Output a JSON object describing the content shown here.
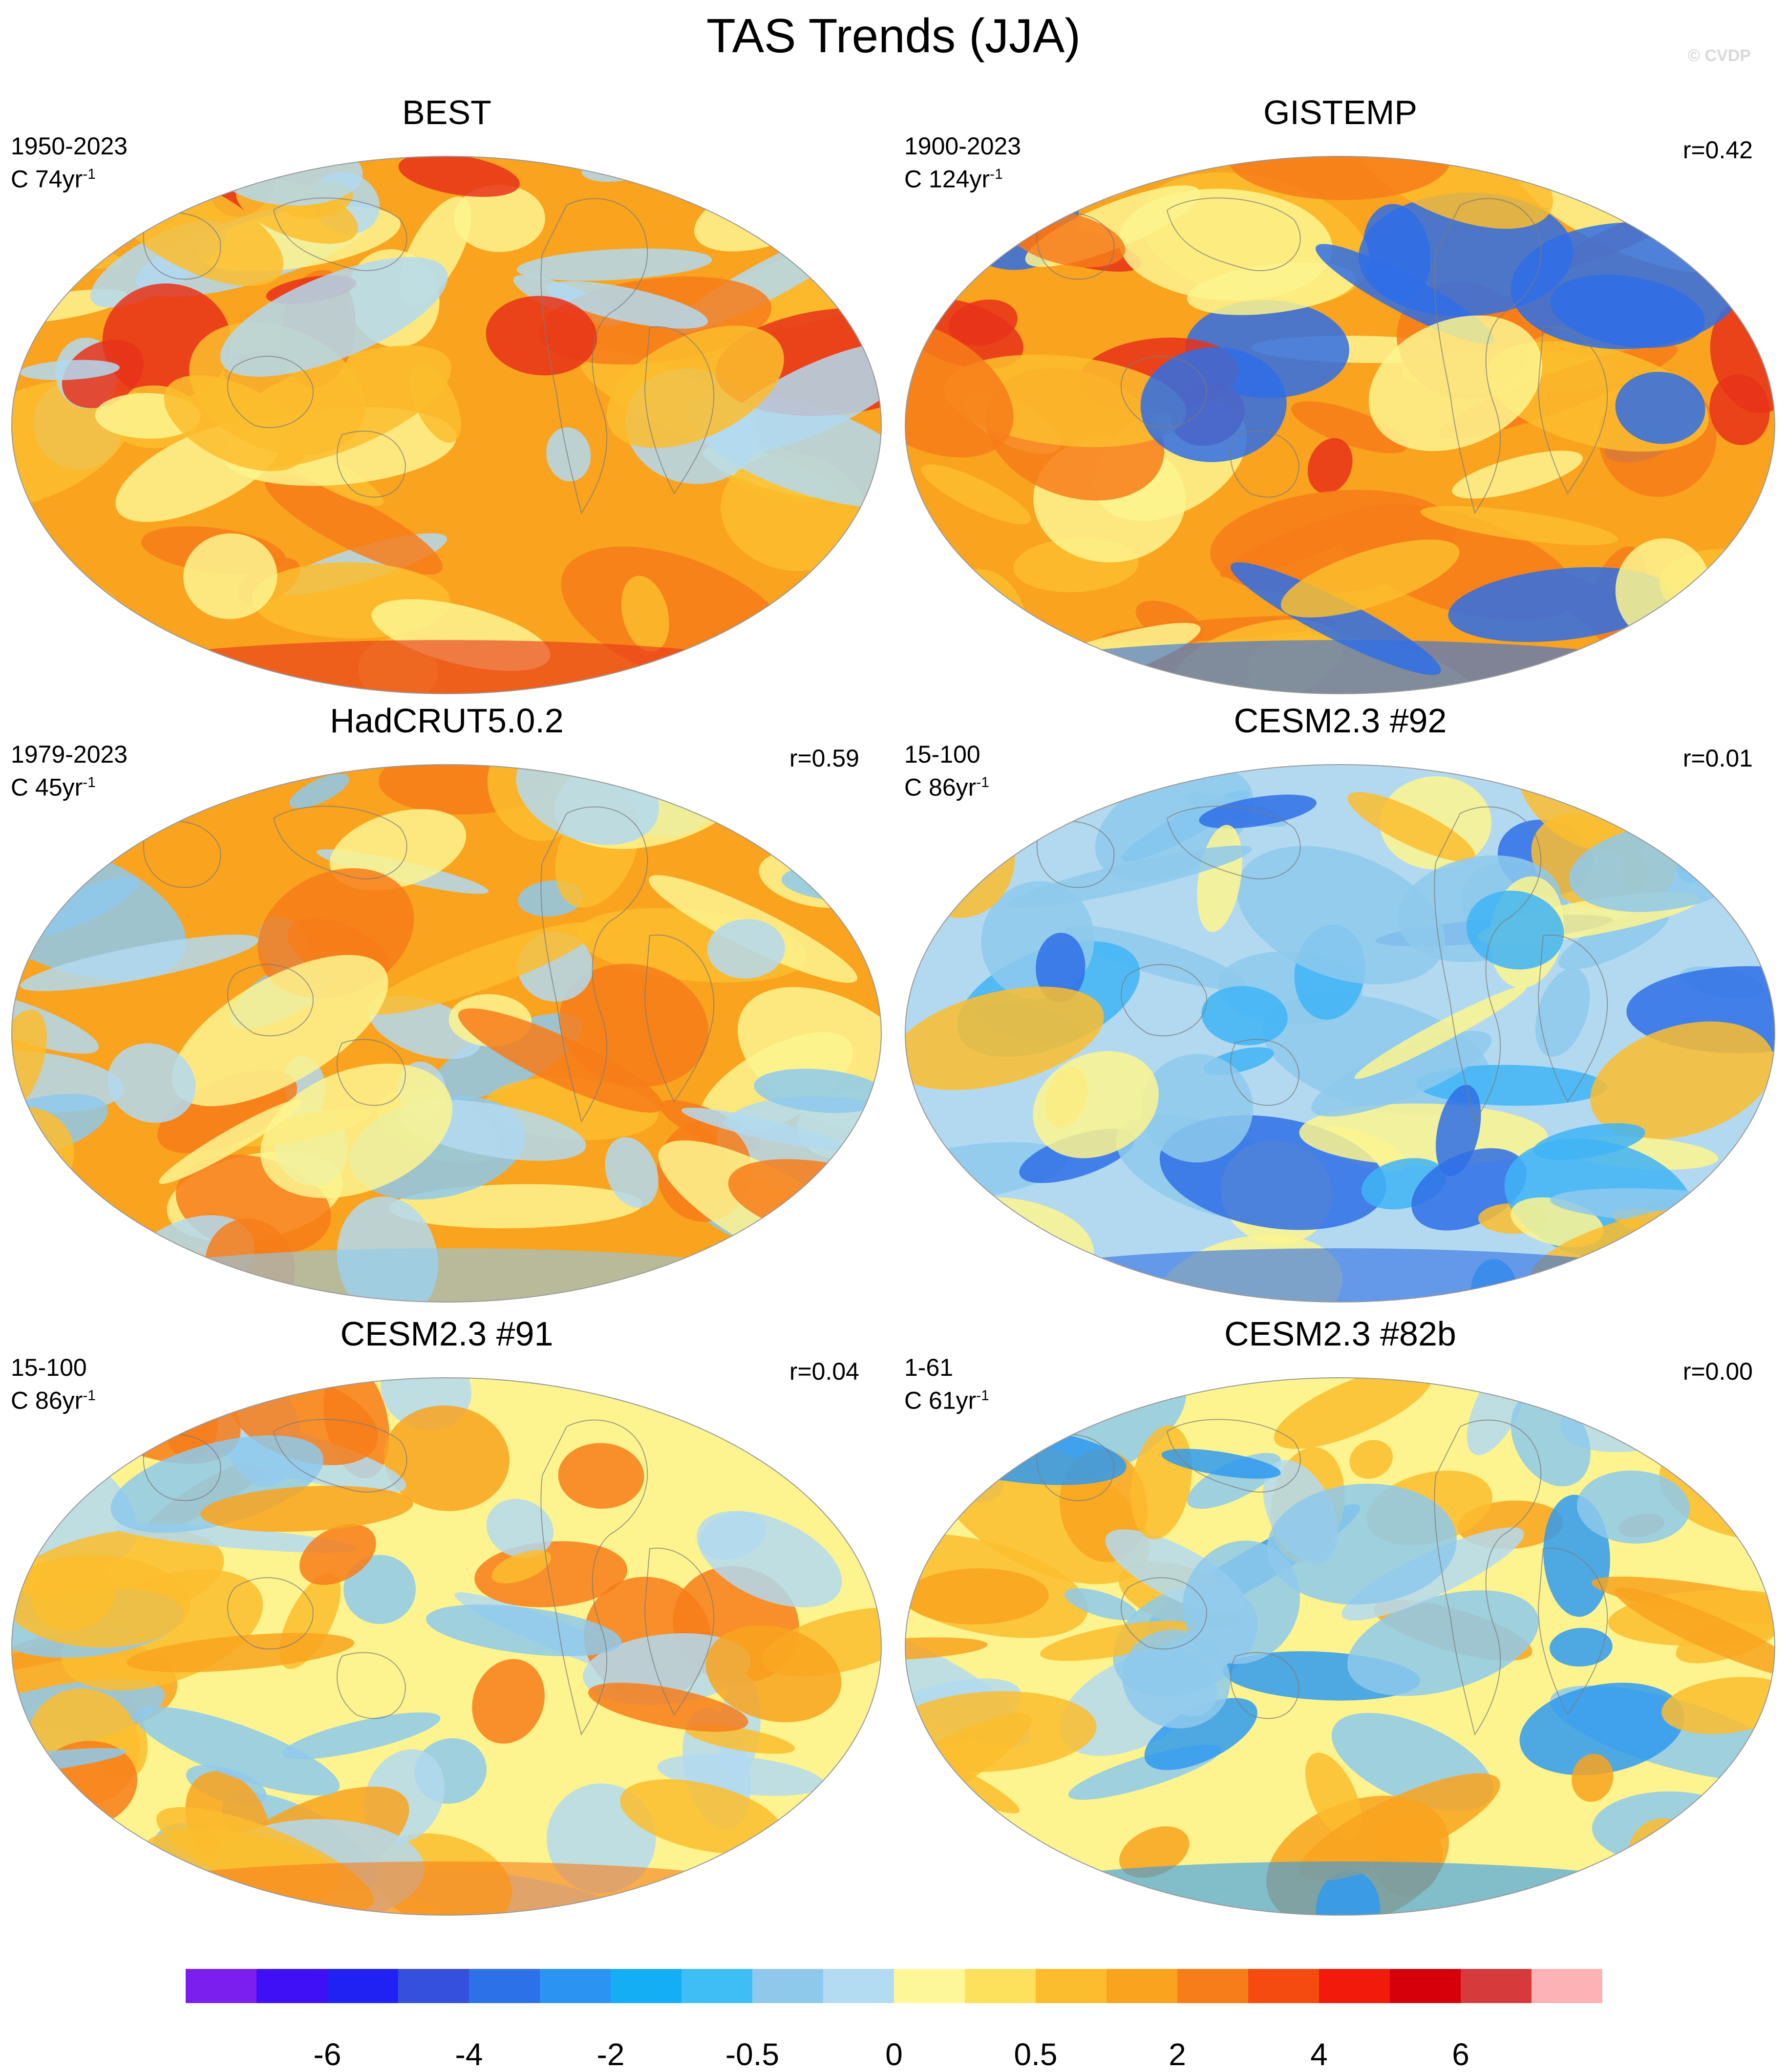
{
  "title": "TAS Trends (JJA)",
  "watermark": "© CVDP",
  "panels": [
    {
      "title": "BEST",
      "period": "1950-2023",
      "unit_prefix": "C",
      "unit_value": "74yr",
      "unit_exp": "-1",
      "corr": "",
      "palette": [
        "#f9a31f",
        "#fbbd2e",
        "#f77d1a",
        "#fdf48f",
        "#b3d9f0",
        "#e8321a"
      ]
    },
    {
      "title": "GISTEMP",
      "period": "1900-2023",
      "unit_prefix": "C",
      "unit_value": "124yr",
      "unit_exp": "-1",
      "corr": "r=0.42",
      "palette": [
        "#f9a31f",
        "#fbbd2e",
        "#f77d1a",
        "#fdf48f",
        "#e8321a",
        "#2f6ee6"
      ]
    },
    {
      "title": "HadCRUT5.0.2",
      "period": "1979-2023",
      "unit_prefix": "C",
      "unit_value": "45yr",
      "unit_exp": "-1",
      "corr": "r=0.59",
      "palette": [
        "#f9a31f",
        "#fbbd2e",
        "#f77d1a",
        "#fdf48f",
        "#b3d9f0",
        "#8ec9ec"
      ]
    },
    {
      "title": "CESM2.3 #92",
      "period": "15-100",
      "unit_prefix": "C",
      "unit_value": "86yr",
      "unit_exp": "-1",
      "corr": "r=0.01",
      "palette": [
        "#b3d9f0",
        "#8ec9ec",
        "#3fb4f6",
        "#fdf48f",
        "#fbbd2e",
        "#2f6ee6"
      ]
    },
    {
      "title": "CESM2.3 #91",
      "period": "15-100",
      "unit_prefix": "C",
      "unit_value": "86yr",
      "unit_exp": "-1",
      "corr": "r=0.04",
      "palette": [
        "#fdf48f",
        "#fbbd2e",
        "#b3d9f0",
        "#f9a31f",
        "#8ec9ec",
        "#f77d1a"
      ]
    },
    {
      "title": "CESM2.3 #82b",
      "period": "1-61",
      "unit_prefix": "C",
      "unit_value": "61yr",
      "unit_exp": "-1",
      "corr": "r=0.00",
      "palette": [
        "#fdf48f",
        "#fbbd2e",
        "#b3d9f0",
        "#f9a31f",
        "#8ec9ec",
        "#2f9af0"
      ]
    }
  ],
  "colorbar": {
    "colors": [
      "#7a1fee",
      "#3f10f5",
      "#1f22f2",
      "#3450dc",
      "#2d71e8",
      "#2b93f2",
      "#14aef5",
      "#3fbef5",
      "#8ec9ec",
      "#b3dcf2",
      "#fdf79a",
      "#fde15c",
      "#fbbd2e",
      "#f9a31f",
      "#f77d1a",
      "#f54a10",
      "#f21a0a",
      "#d6000a",
      "#d63a3a",
      "#fdb2b5"
    ],
    "labels": [
      "-6",
      "-4",
      "-2",
      "-0.5",
      "0",
      "0.5",
      "2",
      "4",
      "6"
    ],
    "label_boundary_index": [
      2,
      4,
      6,
      8,
      10,
      12,
      14,
      16,
      18
    ]
  }
}
